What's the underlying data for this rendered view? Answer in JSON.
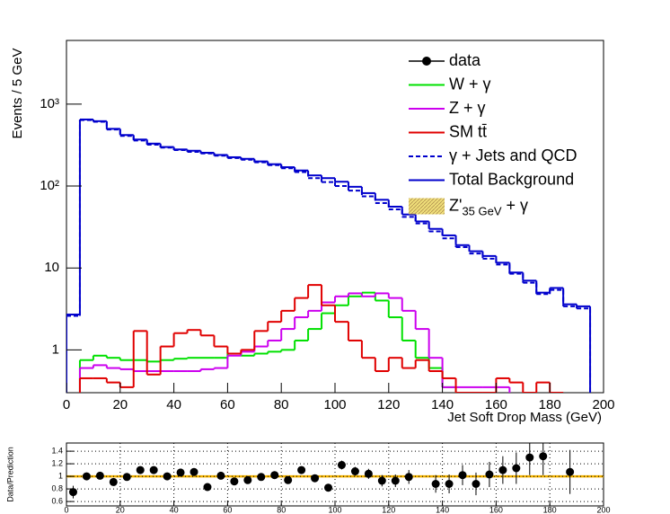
{
  "chart_data": [
    {
      "type": "histogram",
      "y_label": "Events / 5 GeV",
      "x_label": "Jet Soft Drop Mass (GeV)",
      "bins": [
        0,
        5,
        10,
        15,
        20,
        25,
        30,
        35,
        40,
        45,
        50,
        55,
        60,
        65,
        70,
        75,
        80,
        85,
        90,
        95,
        100,
        105,
        110,
        115,
        120,
        125,
        130,
        135,
        140,
        145,
        150,
        155,
        160,
        165,
        170,
        175,
        180,
        185,
        190,
        195,
        200
      ],
      "xlim": [
        0,
        200
      ],
      "xticks": [
        0,
        20,
        40,
        60,
        80,
        100,
        120,
        140,
        160,
        180,
        200
      ],
      "ylim": [
        0.3,
        6000
      ],
      "log_y": true,
      "yticks": [
        1,
        10,
        {
          "value": 100,
          "label": "10²"
        },
        {
          "value": 1000,
          "label": "10³"
        }
      ],
      "legend_data": "data",
      "series": [
        {
          "name": "W + γ",
          "color": "#00e000",
          "style": "solid",
          "values": [
            null,
            0.75,
            0.85,
            0.8,
            0.75,
            0.75,
            0.72,
            0.75,
            0.78,
            0.8,
            0.8,
            0.8,
            0.9,
            0.85,
            0.9,
            0.95,
            1.0,
            1.3,
            1.8,
            2.8,
            3.5,
            4.5,
            5.0,
            4.0,
            2.5,
            1.3,
            0.8,
            0.6,
            0.35,
            0.3,
            null,
            null,
            null,
            null,
            null,
            null,
            null,
            null,
            null,
            null
          ]
        },
        {
          "name": "Z + γ",
          "color": "#cc00ee",
          "style": "solid",
          "values": [
            null,
            0.6,
            0.65,
            0.6,
            0.58,
            0.55,
            0.55,
            0.55,
            0.55,
            0.55,
            0.58,
            0.6,
            0.85,
            0.95,
            1.1,
            1.3,
            1.8,
            2.5,
            3.0,
            3.8,
            4.5,
            4.9,
            4.5,
            4.9,
            4.3,
            3.0,
            1.8,
            0.8,
            0.35,
            0.35,
            0.35,
            0.35,
            0.35,
            null,
            null,
            null,
            null,
            null,
            null,
            null
          ]
        },
        {
          "name": "SM tt̄",
          "color": "#e00000",
          "style": "solid",
          "values": [
            null,
            0.45,
            0.45,
            0.4,
            0.35,
            1.7,
            0.5,
            1.1,
            1.6,
            1.75,
            1.5,
            1.1,
            0.9,
            1.0,
            1.7,
            2.2,
            3.0,
            4.3,
            6.2,
            3.5,
            2.2,
            1.3,
            0.8,
            0.55,
            0.8,
            0.6,
            0.75,
            0.55,
            0.45,
            0.3,
            0.3,
            0.3,
            0.45,
            0.4,
            0.3,
            0.4,
            0.3,
            null,
            null,
            null
          ]
        },
        {
          "name": "γ + Jets and QCD",
          "color": "#0000cc",
          "style": "dashed",
          "values": [
            2.6,
            640,
            610,
            490,
            410,
            360,
            320,
            295,
            275,
            262,
            250,
            235,
            220,
            210,
            195,
            180,
            165,
            148,
            125,
            112,
            100,
            88,
            75,
            62,
            52,
            42,
            35,
            28,
            23,
            18,
            15,
            13,
            11,
            8.5,
            6.6,
            4.8,
            5.4,
            3.4,
            3.2,
            null
          ]
        },
        {
          "name": "Total Background",
          "color": "#0000cc",
          "style": "solid",
          "values": [
            2.7,
            650,
            620,
            500,
            420,
            370,
            330,
            300,
            280,
            270,
            255,
            240,
            225,
            215,
            200,
            185,
            170,
            155,
            135,
            125,
            113,
            98,
            82,
            68,
            56,
            45,
            37,
            30,
            25,
            19,
            16,
            14,
            11.6,
            8.8,
            7.0,
            5.0,
            5.7,
            3.6,
            3.4,
            null
          ]
        }
      ],
      "signal_legend": {
        "name": "Z'",
        "sub": "35 GeV",
        "suffix": " + γ",
        "color": "#e8d040"
      }
    },
    {
      "type": "ratio",
      "y_label": "Data/Prediction",
      "x": [
        2.5,
        7.5,
        12.5,
        17.5,
        22.5,
        27.5,
        32.5,
        37.5,
        42.5,
        47.5,
        52.5,
        57.5,
        62.5,
        67.5,
        72.5,
        77.5,
        82.5,
        87.5,
        92.5,
        97.5,
        102.5,
        107.5,
        112.5,
        117.5,
        122.5,
        127.5,
        132.5,
        137.5,
        142.5,
        147.5,
        152.5,
        157.5,
        162.5,
        167.5,
        172.5,
        177.5,
        182.5,
        187.5,
        192.5,
        197.5
      ],
      "values": [
        0.75,
        1.0,
        1.01,
        0.91,
        0.99,
        1.1,
        1.1,
        1.0,
        1.06,
        1.07,
        0.83,
        1.01,
        0.92,
        0.94,
        0.99,
        1.02,
        0.94,
        1.1,
        0.97,
        0.82,
        1.18,
        1.08,
        1.04,
        0.93,
        0.93,
        0.99,
        null,
        0.88,
        0.88,
        1.02,
        0.88,
        1.03,
        1.1,
        1.13,
        1.3,
        1.32,
        null,
        1.07,
        null,
        null
      ],
      "errors": [
        0.1,
        0.03,
        0.03,
        0.03,
        0.03,
        0.03,
        0.03,
        0.03,
        0.03,
        0.04,
        0.04,
        0.04,
        0.04,
        0.04,
        0.05,
        0.05,
        0.05,
        0.05,
        0.05,
        0.06,
        0.07,
        0.07,
        0.08,
        0.09,
        0.1,
        0.11,
        null,
        0.14,
        0.15,
        0.16,
        0.18,
        0.2,
        0.22,
        0.25,
        0.28,
        0.3,
        null,
        0.35,
        null,
        null
      ],
      "xlim": [
        0,
        200
      ],
      "xticks": [
        0,
        20,
        40,
        60,
        80,
        100,
        120,
        140,
        160,
        180,
        200
      ],
      "ylim": [
        0.53,
        1.53
      ],
      "yticks": [
        0.6,
        0.8,
        1,
        1.2,
        1.4
      ],
      "grid": true,
      "reference": 1
    }
  ]
}
